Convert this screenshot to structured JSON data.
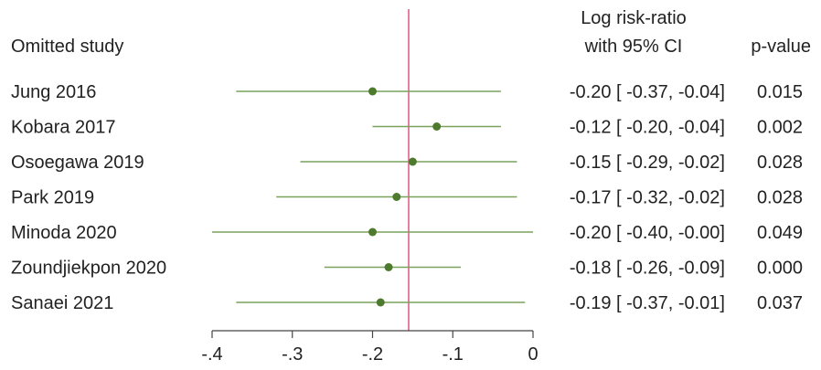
{
  "chart_data": {
    "type": "forest",
    "headers": {
      "study": "Omitted study",
      "estimate_line1": "Log risk-ratio",
      "estimate_line2": "with 95% CI",
      "pvalue": "p-value"
    },
    "rows": [
      {
        "study": "Jung 2016",
        "estimate": -0.2,
        "ci_low": -0.37,
        "ci_high": -0.04,
        "ci_text": "-0.20 [ -0.37,  -0.04]",
        "pvalue": "0.015"
      },
      {
        "study": "Kobara 2017",
        "estimate": -0.12,
        "ci_low": -0.2,
        "ci_high": -0.04,
        "ci_text": "-0.12 [ -0.20,  -0.04]",
        "pvalue": "0.002"
      },
      {
        "study": "Osoegawa 2019",
        "estimate": -0.15,
        "ci_low": -0.29,
        "ci_high": -0.02,
        "ci_text": "-0.15 [ -0.29,  -0.02]",
        "pvalue": "0.028"
      },
      {
        "study": "Park 2019",
        "estimate": -0.17,
        "ci_low": -0.32,
        "ci_high": -0.02,
        "ci_text": "-0.17 [ -0.32,  -0.02]",
        "pvalue": "0.028"
      },
      {
        "study": "Minoda 2020",
        "estimate": -0.2,
        "ci_low": -0.4,
        "ci_high": -0.0,
        "ci_text": "-0.20 [ -0.40,  -0.00]",
        "pvalue": "0.049"
      },
      {
        "study": "Zoundjiekpon 2020",
        "estimate": -0.18,
        "ci_low": -0.26,
        "ci_high": -0.09,
        "ci_text": "-0.18 [ -0.26,  -0.09]",
        "pvalue": "0.000"
      },
      {
        "study": "Sanaei 2021",
        "estimate": -0.19,
        "ci_low": -0.37,
        "ci_high": -0.01,
        "ci_text": "-0.19 [ -0.37,  -0.01]",
        "pvalue": "0.037"
      }
    ],
    "reference_line": -0.155,
    "xlim": [
      -0.4,
      0
    ],
    "xticks": [
      -0.4,
      -0.3,
      -0.2,
      -0.1,
      0
    ],
    "xtick_labels": [
      "-.4",
      "-.3",
      "-.2",
      "-.1",
      "0"
    ],
    "colors": {
      "ci_line": "#7aa25c",
      "point": "#4e7a2e",
      "reference": "#e0608a",
      "axis": "#444444"
    }
  }
}
